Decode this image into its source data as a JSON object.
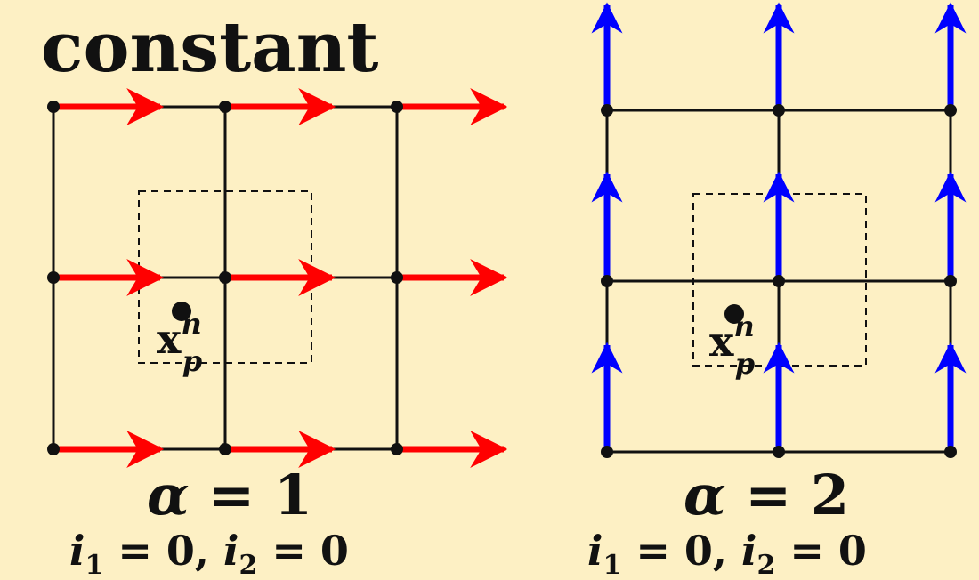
{
  "title": "constant",
  "panels": [
    {
      "id": "alpha1",
      "alpha_symbol": "α",
      "equals": " = ",
      "alpha_value": "1",
      "i1_var": "i",
      "i1_sub": "1",
      "i1_rest": " = 0, ",
      "i2_var": "i",
      "i2_sub": "2",
      "i2_rest": " = 0",
      "arrow_direction": "right",
      "arrow_color": "#ff0000"
    },
    {
      "id": "alpha2",
      "alpha_symbol": "α",
      "equals": " = ",
      "alpha_value": "2",
      "i1_var": "i",
      "i1_sub": "1",
      "i1_rest": " = 0, ",
      "i2_var": "i",
      "i2_sub": "2",
      "i2_rest": " = 0",
      "arrow_direction": "up",
      "arrow_color": "#0000ff"
    }
  ],
  "point_label": {
    "base": "x",
    "sup": "n",
    "sub": "p"
  },
  "colors": {
    "background": "#fdf0c4",
    "grid": "#111111",
    "dashed_box": "#111111"
  }
}
